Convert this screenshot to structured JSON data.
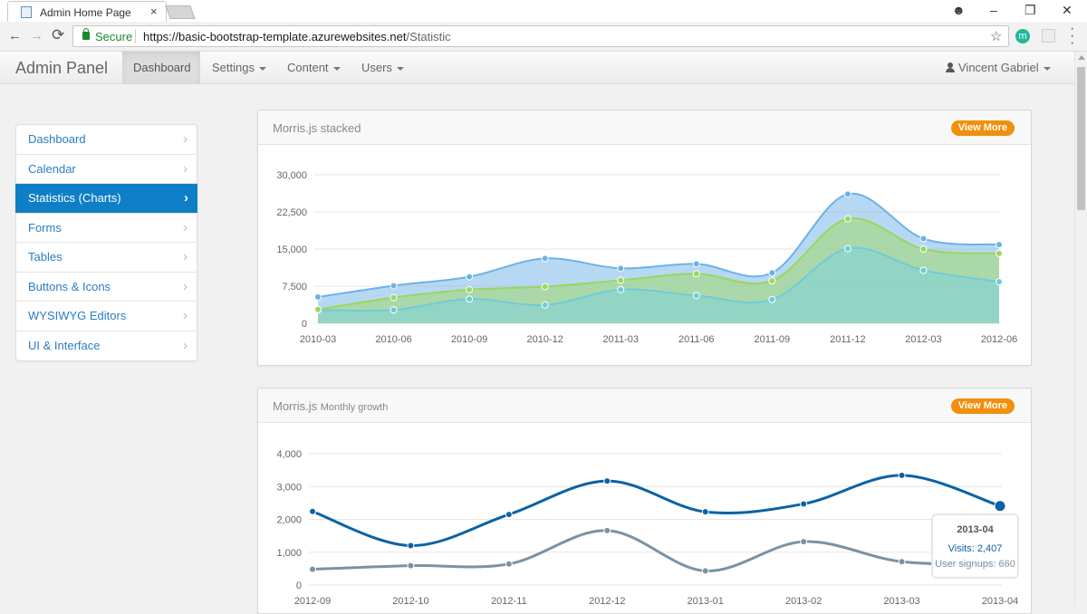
{
  "browser": {
    "tab_title": "Admin Home Page",
    "close_glyph": "×",
    "secure_label": "Secure",
    "url_host": "https://basic-bootstrap-template.azurewebsites.net",
    "url_path": "/Statistic",
    "back_glyph": "←",
    "forward_glyph": "→",
    "reload_glyph": "⟳",
    "star_glyph": "☆",
    "ext_label": "m",
    "window": {
      "profile": "☻",
      "minimize": "–",
      "restore": "❐",
      "close": "✕"
    }
  },
  "navbar": {
    "brand": "Admin Panel",
    "items": [
      {
        "label": "Dashboard",
        "active": true,
        "dropdown": false
      },
      {
        "label": "Settings",
        "active": false,
        "dropdown": true
      },
      {
        "label": "Content",
        "active": false,
        "dropdown": true
      },
      {
        "label": "Users",
        "active": false,
        "dropdown": true
      }
    ],
    "user": "Vincent Gabriel"
  },
  "sidebar": {
    "chevron": "›",
    "items": [
      {
        "label": "Dashboard",
        "active": false
      },
      {
        "label": "Calendar",
        "active": false
      },
      {
        "label": "Statistics (Charts)",
        "active": true
      },
      {
        "label": "Forms",
        "active": false
      },
      {
        "label": "Tables",
        "active": false
      },
      {
        "label": "Buttons & Icons",
        "active": false
      },
      {
        "label": "WYSIWYG Editors",
        "active": false
      },
      {
        "label": "UI & Interface",
        "active": false
      }
    ]
  },
  "panels": {
    "stacked": {
      "title": "Morris.js stacked",
      "button": "View More"
    },
    "growth": {
      "title": "Morris.js",
      "title_small": "Monthly growth",
      "button": "View More"
    }
  },
  "colors": {
    "accent_blue": "#0e7ec7",
    "orange_button": "#f28f0c",
    "series_visits": "#0b62a4",
    "series_signups": "#7a92a3",
    "area_top": "#7cb8e8",
    "area_mid": "#a3d96b",
    "area_bottom": "#7fd3dd"
  },
  "chart_data": [
    {
      "type": "area",
      "title": "",
      "categories": [
        "2010-03",
        "2010-06",
        "2010-09",
        "2010-12",
        "2011-03",
        "2011-06",
        "2011-09",
        "2011-12",
        "2012-03",
        "2012-06"
      ],
      "yticks": [
        "0",
        "7,500",
        "15,000",
        "22,500",
        "30,000"
      ],
      "ylim": [
        0,
        30000
      ],
      "stacked": true,
      "grid": true,
      "series": [
        {
          "values": [
            2700,
            2700,
            4900,
            3700,
            6800,
            5600,
            4800,
            15100,
            10700,
            8400
          ]
        },
        {
          "values": [
            2800,
            5200,
            6800,
            7400,
            8700,
            10000,
            8600,
            21100,
            15000,
            14100
          ]
        },
        {
          "values": [
            5300,
            7600,
            9400,
            13100,
            11100,
            12000,
            10200,
            26100,
            17100,
            15900
          ]
        }
      ]
    },
    {
      "type": "line",
      "title": "",
      "categories": [
        "2012-09",
        "2012-10",
        "2012-11",
        "2012-12",
        "2013-01",
        "2013-02",
        "2013-03",
        "2013-04"
      ],
      "yticks": [
        "0",
        "1,000",
        "2,000",
        "3,000",
        "4,000"
      ],
      "ylim": [
        0,
        4000
      ],
      "grid": true,
      "series": [
        {
          "name": "Visits",
          "values": [
            2240,
            1200,
            2150,
            3170,
            2230,
            2470,
            3340,
            2407
          ]
        },
        {
          "name": "User signups",
          "values": [
            480,
            590,
            640,
            1660,
            430,
            1320,
            710,
            660
          ]
        }
      ],
      "tooltip": {
        "category": "2013-04",
        "rows": [
          "Visits: 2,407",
          "User signups: 660"
        ]
      }
    }
  ]
}
